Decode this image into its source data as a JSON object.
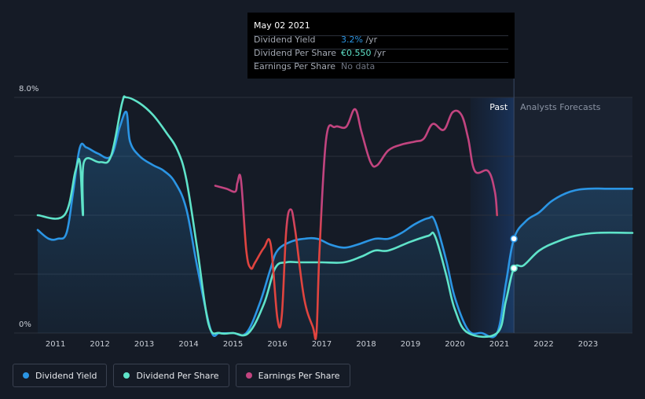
{
  "colors": {
    "background": "#151b26",
    "dividend_yield": "#2b95e4",
    "dividend_per_share": "#5fe3c9",
    "earnings_per_share": "#c2447f",
    "earnings_per_share_low": "#e0443f",
    "grid": "#2a303c",
    "forecast_label": "#8a93a3"
  },
  "tooltip": {
    "date": "May 02 2021",
    "rows": [
      {
        "label": "Dividend Yield",
        "value": "3.2%",
        "suffix": " /yr",
        "color": "#2b95e4"
      },
      {
        "label": "Dividend Per Share",
        "value": "€0.550",
        "suffix": " /yr",
        "color": "#5fe3c9"
      },
      {
        "label": "Earnings Per Share",
        "value": "No data",
        "suffix": "",
        "color": "#6f7582"
      }
    ]
  },
  "legend": [
    {
      "label": "Dividend Yield",
      "color": "#2b95e4"
    },
    {
      "label": "Dividend Per Share",
      "color": "#5fe3c9"
    },
    {
      "label": "Earnings Per Share",
      "color": "#c2447f"
    }
  ],
  "chart_data": {
    "type": "line",
    "title": "",
    "xlabel": "",
    "ylabel": "",
    "ylim": [
      0,
      8
    ],
    "xlim": [
      2010.6,
      2024.0
    ],
    "y_tick_labels": [
      {
        "value": 8,
        "label": "8.0%"
      },
      {
        "value": 0,
        "label": "0%"
      }
    ],
    "x_ticks": [
      2011,
      2012,
      2013,
      2014,
      2015,
      2016,
      2017,
      2018,
      2019,
      2020,
      2021,
      2022,
      2023
    ],
    "past_label": "Past",
    "forecast_label": "Analysts Forecasts",
    "forecast_start": 2021.33,
    "forecast_band_start": 2020.35,
    "highlight": {
      "x": 2021.33,
      "yield": 3.2
    },
    "series": [
      {
        "name": "Dividend Yield",
        "unit": "%",
        "fill": true,
        "points": [
          [
            2010.6,
            3.5
          ],
          [
            2010.85,
            3.2
          ],
          [
            2011.05,
            3.2
          ],
          [
            2011.25,
            3.4
          ],
          [
            2011.4,
            4.8
          ],
          [
            2011.55,
            6.3
          ],
          [
            2011.7,
            6.3
          ],
          [
            2011.95,
            6.1
          ],
          [
            2012.25,
            6.0
          ],
          [
            2012.45,
            7.0
          ],
          [
            2012.6,
            7.5
          ],
          [
            2012.68,
            6.5
          ],
          [
            2012.9,
            6.0
          ],
          [
            2013.2,
            5.7
          ],
          [
            2013.45,
            5.5
          ],
          [
            2013.7,
            5.1
          ],
          [
            2013.95,
            4.2
          ],
          [
            2014.2,
            2.2
          ],
          [
            2014.5,
            0.1
          ],
          [
            2014.7,
            0.0
          ],
          [
            2015.0,
            0.0
          ],
          [
            2015.3,
            0.0
          ],
          [
            2015.6,
            1.0
          ],
          [
            2015.85,
            2.2
          ],
          [
            2016.0,
            2.8
          ],
          [
            2016.3,
            3.1
          ],
          [
            2016.6,
            3.2
          ],
          [
            2016.9,
            3.2
          ],
          [
            2017.2,
            3.0
          ],
          [
            2017.5,
            2.9
          ],
          [
            2017.8,
            3.0
          ],
          [
            2018.2,
            3.2
          ],
          [
            2018.5,
            3.2
          ],
          [
            2018.8,
            3.4
          ],
          [
            2019.1,
            3.7
          ],
          [
            2019.4,
            3.9
          ],
          [
            2019.55,
            3.8
          ],
          [
            2019.8,
            2.5
          ],
          [
            2020.0,
            1.2
          ],
          [
            2020.3,
            0.1
          ],
          [
            2020.6,
            0.0
          ],
          [
            2020.95,
            0.0
          ],
          [
            2021.15,
            1.7
          ],
          [
            2021.33,
            3.2
          ],
          [
            2021.6,
            3.8
          ],
          [
            2021.9,
            4.1
          ],
          [
            2022.2,
            4.5
          ],
          [
            2022.6,
            4.8
          ],
          [
            2023.0,
            4.9
          ],
          [
            2023.5,
            4.9
          ],
          [
            2024.0,
            4.9
          ]
        ]
      },
      {
        "name": "Dividend Per Share",
        "unit": "€",
        "fill": false,
        "points": [
          [
            2010.6,
            4.0
          ],
          [
            2011.2,
            4.0
          ],
          [
            2011.45,
            5.5
          ],
          [
            2011.55,
            5.8
          ],
          [
            2011.62,
            4.0
          ],
          [
            2011.64,
            5.8
          ],
          [
            2012.0,
            5.8
          ],
          [
            2012.25,
            6.0
          ],
          [
            2012.5,
            7.8
          ],
          [
            2012.6,
            8.0
          ],
          [
            2012.9,
            7.8
          ],
          [
            2013.2,
            7.4
          ],
          [
            2013.5,
            6.8
          ],
          [
            2013.75,
            6.2
          ],
          [
            2013.95,
            5.2
          ],
          [
            2014.2,
            2.8
          ],
          [
            2014.45,
            0.3
          ],
          [
            2014.7,
            0.0
          ],
          [
            2015.0,
            0.0
          ],
          [
            2015.35,
            0.0
          ],
          [
            2015.7,
            1.0
          ],
          [
            2015.95,
            2.2
          ],
          [
            2016.2,
            2.4
          ],
          [
            2016.5,
            2.4
          ],
          [
            2017.0,
            2.4
          ],
          [
            2017.5,
            2.4
          ],
          [
            2017.9,
            2.6
          ],
          [
            2018.2,
            2.8
          ],
          [
            2018.5,
            2.8
          ],
          [
            2019.0,
            3.1
          ],
          [
            2019.4,
            3.3
          ],
          [
            2019.55,
            3.3
          ],
          [
            2019.8,
            2.0
          ],
          [
            2020.0,
            0.8
          ],
          [
            2020.3,
            0.0
          ],
          [
            2020.95,
            0.0
          ],
          [
            2021.15,
            1.1
          ],
          [
            2021.33,
            2.2
          ],
          [
            2021.55,
            2.3
          ],
          [
            2021.9,
            2.8
          ],
          [
            2022.3,
            3.1
          ],
          [
            2022.7,
            3.3
          ],
          [
            2023.2,
            3.4
          ],
          [
            2024.0,
            3.4
          ]
        ]
      },
      {
        "name": "Earnings Per Share",
        "unit": "",
        "fill": false,
        "points": [
          [
            2014.6,
            5.0
          ],
          [
            2014.85,
            4.9
          ],
          [
            2015.05,
            4.8
          ],
          [
            2015.1,
            5.1
          ],
          [
            2015.18,
            5.2
          ],
          [
            2015.3,
            2.8
          ],
          [
            2015.4,
            2.2
          ],
          [
            2015.5,
            2.4
          ],
          [
            2015.7,
            2.9
          ],
          [
            2015.85,
            3.0
          ],
          [
            2016.0,
            0.5
          ],
          [
            2016.1,
            0.6
          ],
          [
            2016.2,
            3.5
          ],
          [
            2016.3,
            4.2
          ],
          [
            2016.4,
            3.5
          ],
          [
            2016.6,
            1.2
          ],
          [
            2016.8,
            0.2
          ],
          [
            2016.88,
            0.0
          ],
          [
            2016.95,
            2.8
          ],
          [
            2017.1,
            6.6
          ],
          [
            2017.3,
            7.0
          ],
          [
            2017.55,
            7.0
          ],
          [
            2017.75,
            7.6
          ],
          [
            2017.9,
            6.8
          ],
          [
            2018.1,
            5.8
          ],
          [
            2018.25,
            5.7
          ],
          [
            2018.5,
            6.2
          ],
          [
            2018.8,
            6.4
          ],
          [
            2019.1,
            6.5
          ],
          [
            2019.3,
            6.6
          ],
          [
            2019.5,
            7.1
          ],
          [
            2019.75,
            6.9
          ],
          [
            2019.95,
            7.5
          ],
          [
            2020.15,
            7.4
          ],
          [
            2020.3,
            6.6
          ],
          [
            2020.45,
            5.5
          ],
          [
            2020.75,
            5.5
          ],
          [
            2020.9,
            4.8
          ],
          [
            2020.95,
            4.0
          ]
        ]
      }
    ]
  }
}
